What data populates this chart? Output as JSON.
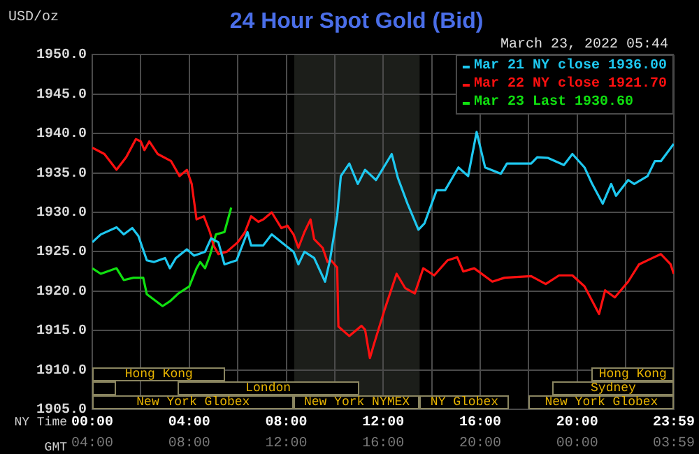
{
  "chart_data": {
    "type": "line",
    "title": "24 Hour Spot Gold (Bid)",
    "subtitle": "March 23, 2022 05:44",
    "ylabel": "USD/oz",
    "xlabel": "NY Time",
    "x2label": "GMT",
    "xlim": [
      0,
      23.983
    ],
    "xticks": [
      {
        "value": 0,
        "label": "00:00"
      },
      {
        "value": 2,
        "label": null
      },
      {
        "value": 4,
        "label": "04:00"
      },
      {
        "value": 6,
        "label": null
      },
      {
        "value": 8,
        "label": "08:00"
      },
      {
        "value": 10,
        "label": null
      },
      {
        "value": 12,
        "label": "12:00"
      },
      {
        "value": 14,
        "label": null
      },
      {
        "value": 16,
        "label": "16:00"
      },
      {
        "value": 18,
        "label": null
      },
      {
        "value": 20,
        "label": "20:00"
      },
      {
        "value": 22,
        "label": null
      },
      {
        "value": 23.983,
        "label": "23:59"
      }
    ],
    "x2lim": [
      "2022-03-23T04:00",
      "2022-03-24T03:59"
    ],
    "x2ticks": [
      {
        "value": "2022-03-23T04:00",
        "label": "04:00"
      },
      {
        "value": "2022-03-23T08:00",
        "label": "08:00"
      },
      {
        "value": "2022-03-23T12:00",
        "label": "12:00"
      },
      {
        "value": "2022-03-23T16:00",
        "label": "16:00"
      },
      {
        "value": "2022-03-23T20:00",
        "label": "20:00"
      },
      {
        "value": "2022-03-24T00:00",
        "label": "00:00"
      },
      {
        "value": "2022-03-24T03:59",
        "label": "03:59"
      }
    ],
    "ylim": [
      1905,
      1950
    ],
    "yticks": [
      {
        "value": 1905,
        "label": "1905.0"
      },
      {
        "value": 1910,
        "label": "1910.0"
      },
      {
        "value": 1915,
        "label": "1915.0"
      },
      {
        "value": 1920,
        "label": "1920.0"
      },
      {
        "value": 1925,
        "label": "1925.0"
      },
      {
        "value": 1930,
        "label": "1930.0"
      },
      {
        "value": 1935,
        "label": "1935.0"
      },
      {
        "value": 1940,
        "label": "1940.0"
      },
      {
        "value": 1945,
        "label": "1945.0"
      },
      {
        "value": 1950,
        "label": "1950.0"
      }
    ],
    "grid": true,
    "legend": "top right",
    "bands": [
      {
        "axis": "x",
        "from": 8.33,
        "to": 13.5,
        "color": "#1c1e1a"
      }
    ],
    "annotations": [
      "New York Globex",
      "New York NYMEX",
      "NY Globex",
      "New York Globex",
      "London",
      "Sydney",
      "Hong Kong",
      "Hong Kong"
    ],
    "series": [
      {
        "name": "Mar 21 NY close 1936.00",
        "color": "#1ec8f0",
        "x": [
          0,
          0.35,
          1.0,
          1.3,
          1.65,
          1.9,
          2.25,
          2.55,
          3.0,
          3.2,
          3.45,
          3.9,
          4.2,
          4.65,
          4.9,
          5.2,
          5.45,
          5.95,
          6.4,
          6.55,
          7.05,
          7.4,
          7.8,
          8.3,
          8.5,
          8.75,
          9.15,
          9.6,
          9.8,
          10.1,
          10.25,
          10.6,
          10.95,
          11.25,
          11.7,
          12.35,
          12.6,
          13.0,
          13.45,
          13.7,
          14.2,
          14.55,
          15.1,
          15.5,
          15.85,
          16.2,
          16.6,
          16.85,
          17.1,
          18.1,
          18.35,
          18.8,
          19.45,
          19.8,
          20.3,
          20.6,
          21.05,
          21.4,
          21.6,
          21.8,
          22.1,
          22.35,
          22.9,
          23.2,
          23.45,
          23.98
        ],
        "values": [
          1926.2,
          1927.2,
          1928.1,
          1927.2,
          1928,
          1927,
          1923.9,
          1923.7,
          1924.2,
          1922.9,
          1924.2,
          1925.3,
          1924.5,
          1925,
          1926.7,
          1926.2,
          1923.4,
          1923.9,
          1927.5,
          1925.8,
          1925.8,
          1927.2,
          1926.2,
          1925,
          1923.4,
          1925,
          1924.2,
          1921.2,
          1923.9,
          1929.6,
          1934.6,
          1936.2,
          1933.6,
          1935.4,
          1934.1,
          1937.4,
          1934.4,
          1931.1,
          1927.8,
          1928.6,
          1932.8,
          1932.8,
          1935.7,
          1934.6,
          1940.2,
          1935.7,
          1935.2,
          1934.9,
          1936.2,
          1936.2,
          1937,
          1936.9,
          1936,
          1937.4,
          1935.7,
          1933.7,
          1931.1,
          1933.6,
          1932.1,
          1932.9,
          1934.1,
          1933.6,
          1934.6,
          1936.5,
          1936.5,
          1938.7
        ]
      },
      {
        "name": "Mar 22 NY close 1921.70",
        "color": "#ff1010",
        "x": [
          0,
          0.5,
          1.0,
          1.4,
          1.8,
          2.0,
          2.15,
          2.35,
          2.7,
          3.25,
          3.6,
          3.9,
          4.1,
          4.3,
          4.6,
          4.85,
          5.0,
          5.2,
          5.55,
          6.0,
          6.3,
          6.55,
          6.85,
          7.05,
          7.4,
          7.8,
          8.05,
          8.3,
          8.5,
          8.75,
          9.0,
          9.15,
          9.5,
          9.7,
          9.85,
          10.1,
          10.15,
          10.6,
          11.1,
          11.25,
          11.45,
          11.6,
          12.05,
          12.55,
          12.9,
          13.3,
          13.65,
          14.1,
          14.65,
          15.05,
          15.3,
          15.75,
          16.5,
          17.0,
          18.1,
          18.7,
          19.25,
          19.8,
          20.3,
          20.9,
          21.15,
          21.55,
          22.1,
          22.55,
          23.1,
          23.45,
          23.85,
          23.98
        ],
        "values": [
          1938.2,
          1937.4,
          1935.4,
          1937,
          1939.3,
          1939,
          1937.9,
          1939,
          1937.4,
          1936.5,
          1934.6,
          1935.4,
          1933.6,
          1929.1,
          1929.5,
          1927.5,
          1925.8,
          1924.7,
          1925,
          1926.2,
          1927.5,
          1929.5,
          1928.8,
          1929.1,
          1930,
          1928,
          1928.3,
          1927.2,
          1925.5,
          1927.5,
          1929.1,
          1926.6,
          1925.5,
          1923.7,
          1923.9,
          1923,
          1915.5,
          1914.3,
          1915.6,
          1915.1,
          1911.5,
          1913.1,
          1917.6,
          1922.2,
          1920.4,
          1919.7,
          1922.9,
          1922,
          1923.9,
          1924.3,
          1922.5,
          1922.9,
          1921.2,
          1921.7,
          1921.9,
          1920.9,
          1922,
          1922,
          1920.6,
          1917.1,
          1920.1,
          1919.2,
          1921.2,
          1923.4,
          1924.2,
          1924.7,
          1923.4,
          1922.2
        ]
      },
      {
        "name": "Mar 23 Last 1930.60",
        "color": "#10e010",
        "x": [
          0,
          0.35,
          1.0,
          1.3,
          1.7,
          2.1,
          2.25,
          2.9,
          3.2,
          3.55,
          4.0,
          4.3,
          4.45,
          4.65,
          4.85,
          5.1,
          5.45,
          5.73
        ],
        "values": [
          1922.9,
          1922.2,
          1922.9,
          1921.4,
          1921.7,
          1921.7,
          1919.6,
          1918.1,
          1918.7,
          1919.7,
          1920.6,
          1922.9,
          1923.7,
          1922.9,
          1924.5,
          1927.2,
          1927.5,
          1930.6
        ]
      }
    ]
  }
}
